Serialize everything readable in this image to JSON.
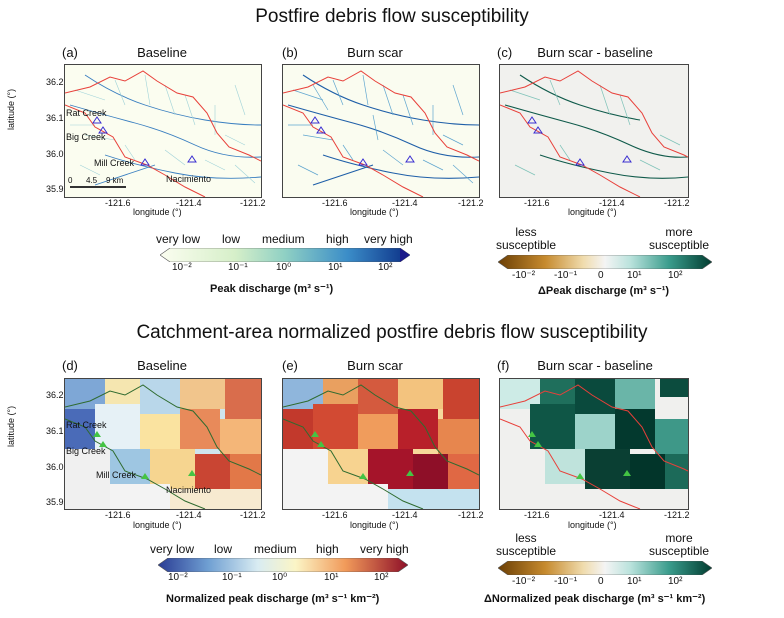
{
  "section1": {
    "title": "Postfire debris flow susceptibility",
    "panels": [
      {
        "label": "(a)",
        "title": "Baseline"
      },
      {
        "label": "(b)",
        "title": "Burn scar"
      },
      {
        "label": "(c)",
        "title": "Burn scar - baseline"
      }
    ],
    "colorbar_left": {
      "categories": [
        "very low",
        "low",
        "medium",
        "high",
        "very high"
      ],
      "ticks": [
        "10⁻²",
        "10⁻¹",
        "10⁰",
        "10¹",
        "10²"
      ],
      "title": "Peak discharge (m³ s⁻¹)"
    },
    "colorbar_right": {
      "end_labels": [
        "less susceptible",
        "more susceptible"
      ],
      "ticks": [
        "-10⁻²",
        "-10⁻¹",
        "0",
        "10¹",
        "10²"
      ],
      "title": "ΔPeak discharge (m³ s⁻¹)"
    }
  },
  "section2": {
    "title": "Catchment-area normalized postfire debris flow susceptibility",
    "panels": [
      {
        "label": "(d)",
        "title": "Baseline"
      },
      {
        "label": "(e)",
        "title": "Burn scar"
      },
      {
        "label": "(f)",
        "title": "Burn scar - baseline"
      }
    ],
    "colorbar_left": {
      "categories": [
        "very low",
        "low",
        "medium",
        "high",
        "very high"
      ],
      "ticks": [
        "10⁻²",
        "10⁻¹",
        "10⁰",
        "10¹",
        "10²"
      ],
      "title": "Normalized peak discharge (m³ s⁻¹ km⁻²)"
    },
    "colorbar_right": {
      "end_labels": [
        "less susceptible",
        "more susceptible"
      ],
      "ticks": [
        "-10⁻²",
        "-10⁻¹",
        "0",
        "10¹",
        "10²"
      ],
      "title": "ΔNormalized peak discharge (m³ s⁻¹ km⁻²)"
    }
  },
  "axes": {
    "ylabel": "latitude (°)",
    "xlabel": "longitude (°)",
    "yticks": [
      "36.2",
      "36.1",
      "36.0",
      "35.9"
    ],
    "xticks": [
      "-121.6",
      "-121.4",
      "-121.2"
    ]
  },
  "places": {
    "rat_creek": "Rat Creek",
    "big_creek": "Big Creek",
    "mill_creek": "Mill Creek",
    "nacimiento": "Nacimiento"
  },
  "scalebar": {
    "ticks": [
      "0",
      "4.5",
      "9 km"
    ]
  },
  "colors": {
    "burn_perimeter": "#e8403a",
    "station_marker": "#3a2fd0",
    "river_low": "#bfe3c4",
    "river_high": "#0a4c9e"
  }
}
